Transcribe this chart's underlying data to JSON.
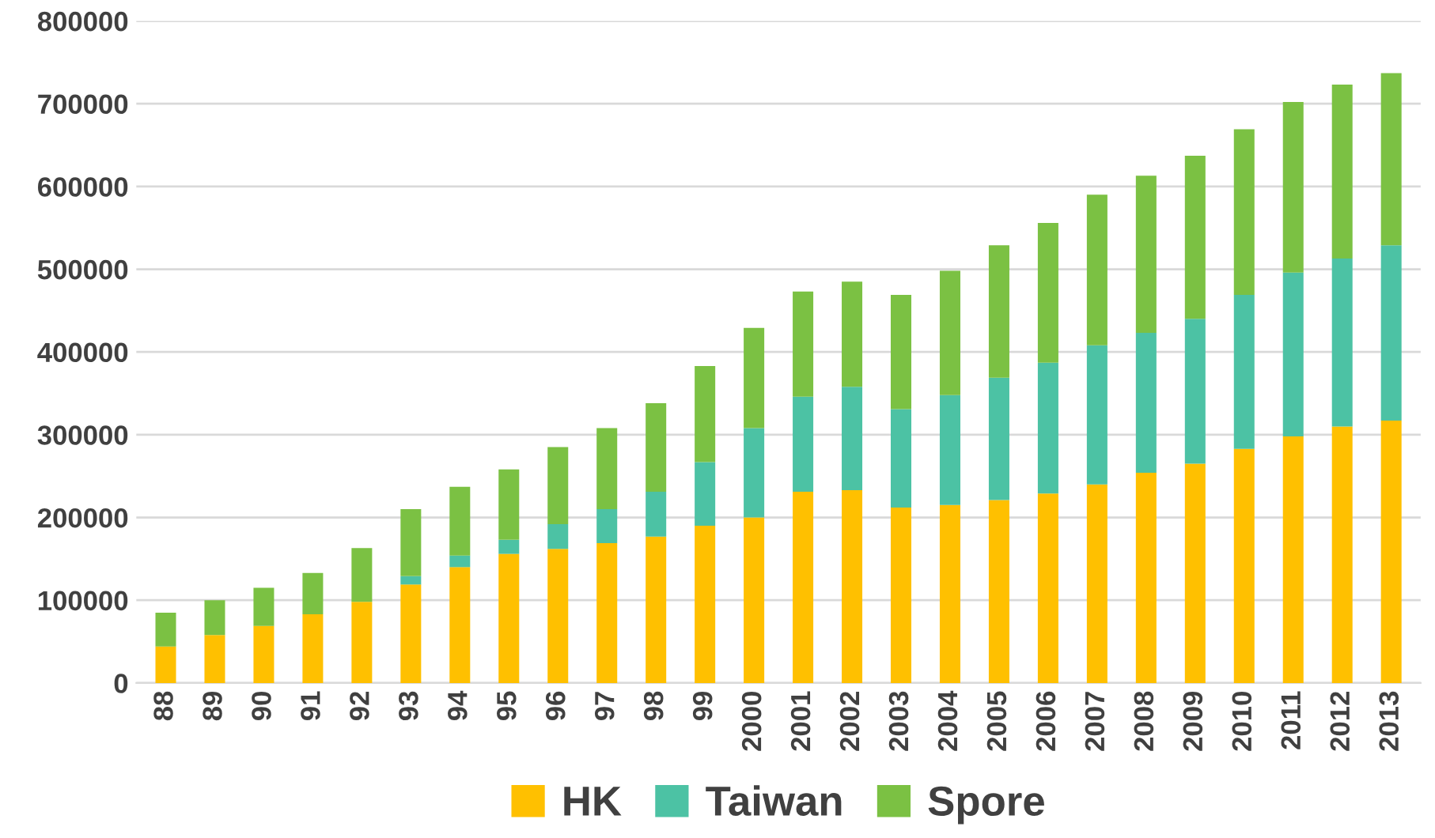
{
  "chart_data": {
    "type": "bar",
    "stacked": true,
    "categories": [
      "88",
      "89",
      "90",
      "91",
      "92",
      "93",
      "94",
      "95",
      "96",
      "97",
      "98",
      "99",
      "2000",
      "2001",
      "2002",
      "2003",
      "2004",
      "2005",
      "2006",
      "2007",
      "2008",
      "2009",
      "2010",
      "2011",
      "2012",
      "2013"
    ],
    "series": [
      {
        "name": "HK",
        "color": "#ffc000",
        "values": [
          44000,
          58000,
          69000,
          83000,
          98000,
          119000,
          140000,
          156000,
          162000,
          169000,
          177000,
          190000,
          200000,
          231000,
          233000,
          212000,
          215000,
          221000,
          229000,
          240000,
          254000,
          265000,
          283000,
          298000,
          310000,
          317000
        ]
      },
      {
        "name": "Taiwan",
        "color": "#4cc2a4",
        "values": [
          0,
          0,
          0,
          0,
          0,
          10000,
          14000,
          17000,
          30000,
          41000,
          54000,
          77000,
          108000,
          115000,
          125000,
          119000,
          133000,
          148000,
          158000,
          168000,
          169000,
          175000,
          186000,
          198000,
          203000,
          212000
        ]
      },
      {
        "name": "Spore",
        "color": "#7bc143",
        "values": [
          41000,
          42000,
          46000,
          50000,
          65000,
          81000,
          83000,
          85000,
          93000,
          98000,
          107000,
          116000,
          121000,
          127000,
          127000,
          138000,
          150000,
          160000,
          169000,
          182000,
          190000,
          197000,
          200000,
          206000,
          210000,
          208000
        ]
      }
    ],
    "ylim": [
      0,
      800000
    ],
    "yticks": [
      0,
      100000,
      200000,
      300000,
      400000,
      500000,
      600000,
      700000,
      800000
    ],
    "grid": "y",
    "legend": "bottom"
  }
}
